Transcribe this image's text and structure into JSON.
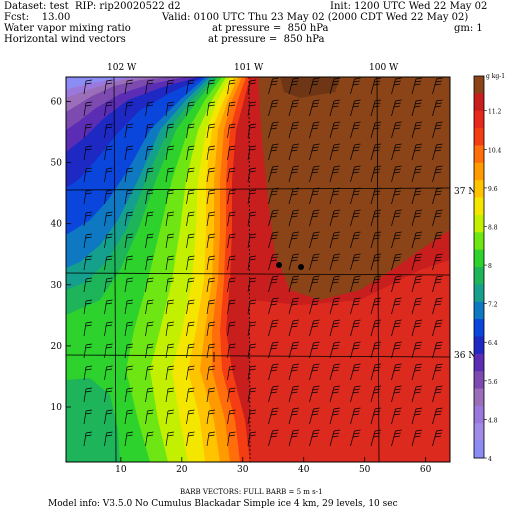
{
  "header": {
    "dataset": "Dataset: test  RIP: rip20020522 d2",
    "init": "Init: 1200 UTC Wed 22 May 02",
    "fcst": "Fcst:    13.00",
    "valid": "Valid: 0100 UTC Thu 23 May 02 (2000 CDT Wed 22 May 02)",
    "field1": "Water vapor mixing ratio",
    "field1_level": "at pressure =  850 hPa",
    "field1_units": "gm: 1",
    "field2": "Horizontal wind vectors",
    "field2_level": "at pressure =  850 hPa"
  },
  "map": {
    "longitude_labels": [
      "102 W",
      "101 W",
      "100 W"
    ],
    "latitude_labels": [
      "37 N",
      "36 N"
    ],
    "x_ticks": [
      "10",
      "20",
      "30",
      "40",
      "50",
      "60"
    ],
    "y_ticks": [
      "10",
      "20",
      "30",
      "40",
      "50",
      "60"
    ],
    "xlim": [
      1,
      64
    ],
    "ylim": [
      1,
      64
    ],
    "stations": [
      "station-a",
      "station-b"
    ]
  },
  "colorbar": {
    "unit_label": "g kg-1",
    "labels": [
      "11.2",
      "10.4",
      "9.6",
      "8.8",
      "8",
      "7.2",
      "6.4",
      "5.6",
      "4.8",
      "4"
    ],
    "colors": [
      "#8a4418",
      "#c81e1e",
      "#e8281e",
      "#f53d14",
      "#ff6e0a",
      "#ff9b00",
      "#ffc300",
      "#f5e600",
      "#c3f000",
      "#6ee614",
      "#2dd22d",
      "#1eb45a",
      "#14a08c",
      "#0f78c3",
      "#0a46dc",
      "#1e28c3",
      "#5a2db4",
      "#7d4baf",
      "#9b6eb9",
      "#9b78dc",
      "#a08ce6",
      "#8c8cf5"
    ]
  },
  "footer": {
    "barb_note": "BARB VECTORS:  FULL BARB = 5 m s-1",
    "model_info": "Model info: V3.5.0 No Cumulus Blackadar  Simple ice    4 km,  29 levels,   10 sec"
  }
}
